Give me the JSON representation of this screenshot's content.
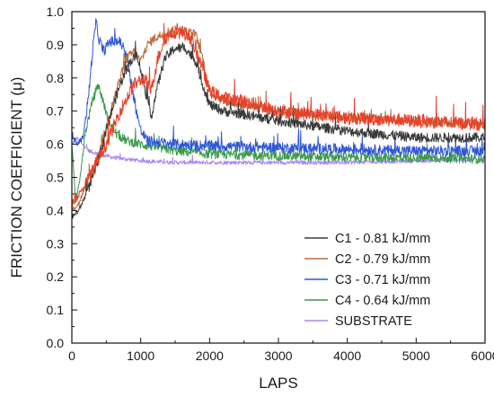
{
  "chart_data": {
    "type": "line",
    "title": "",
    "xlabel": "LAPS",
    "ylabel": "FRICTION COEFFICIENT (μ)",
    "xlim": [
      0,
      6000
    ],
    "ylim": [
      0.0,
      1.0
    ],
    "x_ticks": [
      "0",
      "1000",
      "2000",
      "3000",
      "4000",
      "5000",
      "6000"
    ],
    "y_ticks": [
      "0.0",
      "0.1",
      "0.2",
      "0.3",
      "0.4",
      "0.5",
      "0.6",
      "0.7",
      "0.8",
      "0.9",
      "1.0"
    ],
    "grid": false,
    "legend_position": "bottom-right",
    "series": [
      {
        "name": "SUBSTRATE",
        "color": "#a987f5",
        "noise": 0.006,
        "points": [
          [
            0,
            0.6
          ],
          [
            80,
            0.62
          ],
          [
            150,
            0.6
          ],
          [
            250,
            0.58
          ],
          [
            400,
            0.57
          ],
          [
            600,
            0.56
          ],
          [
            1000,
            0.55
          ],
          [
            1500,
            0.545
          ],
          [
            2000,
            0.545
          ],
          [
            3000,
            0.545
          ],
          [
            4000,
            0.545
          ],
          [
            5000,
            0.55
          ],
          [
            6000,
            0.555
          ]
        ]
      },
      {
        "name": "C4 - 0.64 kJ/mm",
        "color": "#3a9a4a",
        "noise": 0.014,
        "points": [
          [
            0,
            0.6
          ],
          [
            60,
            0.42
          ],
          [
            120,
            0.5
          ],
          [
            200,
            0.64
          ],
          [
            300,
            0.73
          ],
          [
            380,
            0.78
          ],
          [
            440,
            0.74
          ],
          [
            520,
            0.68
          ],
          [
            650,
            0.63
          ],
          [
            800,
            0.61
          ],
          [
            1000,
            0.6
          ],
          [
            1500,
            0.58
          ],
          [
            2000,
            0.57
          ],
          [
            3000,
            0.565
          ],
          [
            4000,
            0.56
          ],
          [
            5000,
            0.56
          ],
          [
            6000,
            0.555
          ]
        ]
      },
      {
        "name": "C3 - 0.71 kJ/mm",
        "color": "#2d57d8",
        "noise": 0.016,
        "points": [
          [
            0,
            0.62
          ],
          [
            80,
            0.6
          ],
          [
            160,
            0.62
          ],
          [
            240,
            0.74
          ],
          [
            300,
            0.88
          ],
          [
            350,
            0.97
          ],
          [
            390,
            0.92
          ],
          [
            460,
            0.88
          ],
          [
            550,
            0.91
          ],
          [
            700,
            0.91
          ],
          [
            800,
            0.86
          ],
          [
            900,
            0.74
          ],
          [
            1000,
            0.64
          ],
          [
            1100,
            0.61
          ],
          [
            1500,
            0.6
          ],
          [
            2000,
            0.595
          ],
          [
            3000,
            0.59
          ],
          [
            4000,
            0.585
          ],
          [
            5000,
            0.58
          ],
          [
            6000,
            0.58
          ]
        ]
      },
      {
        "name": "C2 - 0.79 kJ/mm",
        "color": "#b86b3a",
        "noise": 0.014,
        "points": [
          [
            0,
            0.4
          ],
          [
            100,
            0.42
          ],
          [
            250,
            0.5
          ],
          [
            400,
            0.58
          ],
          [
            500,
            0.65
          ],
          [
            600,
            0.73
          ],
          [
            700,
            0.8
          ],
          [
            800,
            0.86
          ],
          [
            900,
            0.88
          ],
          [
            1000,
            0.85
          ],
          [
            1100,
            0.9
          ],
          [
            1200,
            0.92
          ],
          [
            1300,
            0.93
          ],
          [
            1400,
            0.94
          ],
          [
            1600,
            0.945
          ],
          [
            1800,
            0.93
          ],
          [
            1900,
            0.86
          ],
          [
            2000,
            0.76
          ],
          [
            2200,
            0.73
          ],
          [
            2500,
            0.72
          ],
          [
            3000,
            0.7
          ],
          [
            4000,
            0.68
          ],
          [
            5000,
            0.67
          ],
          [
            6000,
            0.66
          ]
        ]
      },
      {
        "name": "C1 - 0.81 kJ/mm",
        "color": "#3a3a3a",
        "noise": 0.015,
        "points": [
          [
            0,
            0.38
          ],
          [
            100,
            0.4
          ],
          [
            250,
            0.47
          ],
          [
            400,
            0.56
          ],
          [
            550,
            0.68
          ],
          [
            700,
            0.78
          ],
          [
            850,
            0.85
          ],
          [
            950,
            0.87
          ],
          [
            1050,
            0.78
          ],
          [
            1150,
            0.68
          ],
          [
            1250,
            0.78
          ],
          [
            1350,
            0.86
          ],
          [
            1500,
            0.89
          ],
          [
            1650,
            0.89
          ],
          [
            1800,
            0.85
          ],
          [
            1900,
            0.78
          ],
          [
            2000,
            0.72
          ],
          [
            2200,
            0.7
          ],
          [
            2500,
            0.69
          ],
          [
            3000,
            0.67
          ],
          [
            4000,
            0.64
          ],
          [
            5000,
            0.62
          ],
          [
            6000,
            0.62
          ]
        ]
      },
      {
        "name": "",
        "color": "#e8402a",
        "noise": 0.02,
        "points": [
          [
            0,
            0.42
          ],
          [
            150,
            0.46
          ],
          [
            300,
            0.52
          ],
          [
            500,
            0.6
          ],
          [
            700,
            0.7
          ],
          [
            900,
            0.78
          ],
          [
            1050,
            0.8
          ],
          [
            1150,
            0.76
          ],
          [
            1250,
            0.86
          ],
          [
            1350,
            0.92
          ],
          [
            1500,
            0.94
          ],
          [
            1700,
            0.93
          ],
          [
            1850,
            0.86
          ],
          [
            2000,
            0.76
          ],
          [
            2200,
            0.74
          ],
          [
            2500,
            0.73
          ],
          [
            3000,
            0.7
          ],
          [
            4000,
            0.68
          ],
          [
            5000,
            0.67
          ],
          [
            6000,
            0.66
          ]
        ]
      }
    ],
    "legend": [
      {
        "label": "C1 - 0.81 kJ/mm",
        "color": "#3a3a3a"
      },
      {
        "label": "C2 - 0.79 kJ/mm",
        "color": "#b86b3a"
      },
      {
        "label": "C3 - 0.71 kJ/mm",
        "color": "#2d57d8"
      },
      {
        "label": "C4 - 0.64 kJ/mm",
        "color": "#3a9a4a"
      },
      {
        "label": "SUBSTRATE",
        "color": "#a987f5"
      }
    ]
  }
}
